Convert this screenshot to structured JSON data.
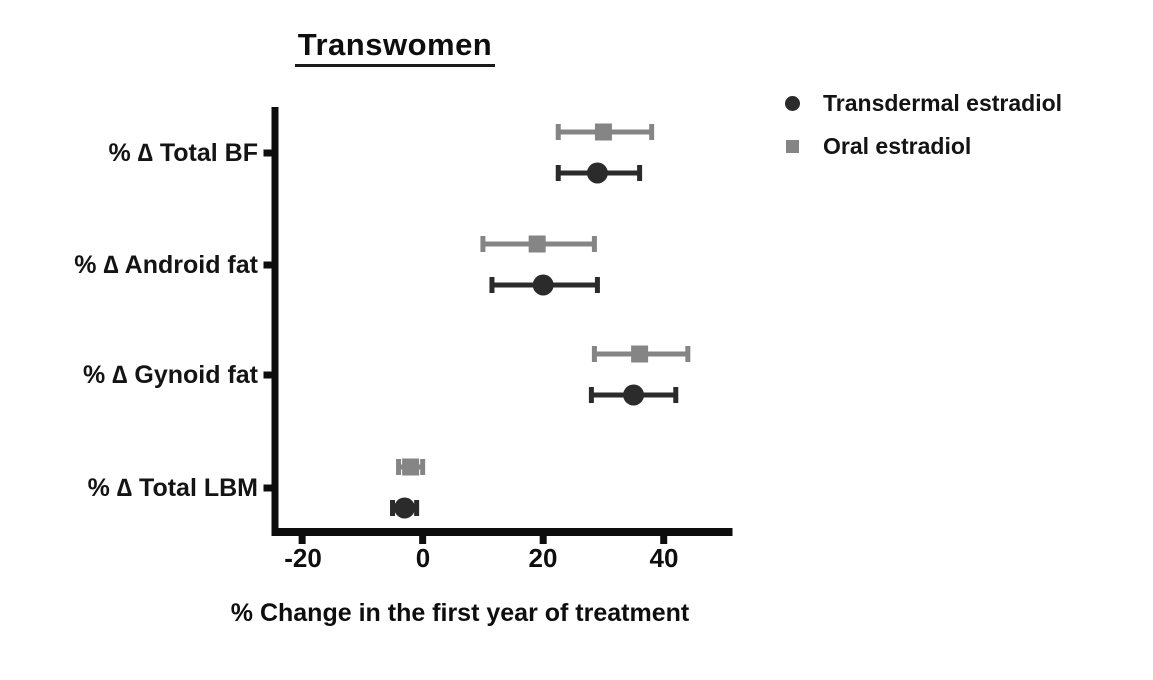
{
  "chart_data": {
    "type": "scatter",
    "subtype": "horizontal-dot-plot-with-error-bars",
    "title": "Transwomen",
    "xlabel": "% Change in the first year of treatment",
    "ylabel": "",
    "categories": [
      "% ∆ Total BF",
      "% ∆ Android fat",
      "% ∆ Gynoid fat",
      "% ∆ Total LBM"
    ],
    "x_ticks": [
      "-20",
      "0",
      "20",
      "40"
    ],
    "xlim": [
      -25,
      51
    ],
    "grid": false,
    "legend_position": "top-right",
    "background_color": "#ffffff",
    "axis_color": "#0d0d0d",
    "series": [
      {
        "name": "Transdermal estradiol",
        "marker": "circle",
        "color": "#2b2b2b",
        "values": [
          29,
          20,
          35,
          -3
        ],
        "ci_low": [
          22.5,
          11.5,
          28,
          -5
        ],
        "ci_high": [
          36,
          29,
          42,
          -1
        ]
      },
      {
        "name": "Oral estradiol",
        "marker": "square",
        "color": "#858585",
        "values": [
          30,
          19,
          36,
          -2
        ],
        "ci_low": [
          22.5,
          10,
          28.5,
          -4
        ],
        "ci_high": [
          38,
          28.5,
          44,
          0
        ]
      }
    ]
  }
}
